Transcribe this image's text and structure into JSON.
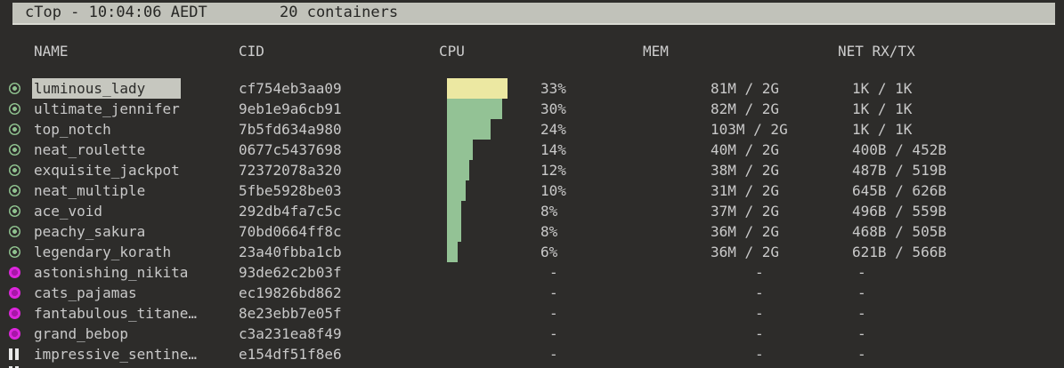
{
  "topbar": {
    "title": "cTop - 10:04:06 AEDT",
    "containers_count": "20 containers"
  },
  "columns": {
    "name": "NAME",
    "cid": "CID",
    "cpu": "CPU",
    "mem": "MEM",
    "net": "NET RX/TX"
  },
  "palette": {
    "bg": "#2d2c2a",
    "topbar_bg": "#c1c2ba",
    "topbar_text": "#262624",
    "text": "#c9c9c9",
    "selected_bg": "#c6c7bf",
    "selected_text": "#2b2b29",
    "running": "#8fc28f",
    "exited": "#dc26dc",
    "exited_center": "#a816a8",
    "paused": "#e8e8e8",
    "bar_warn": "#ece8a2",
    "bar_ok": "#93c295"
  },
  "chart_data": {
    "type": "bar",
    "title": "CPU usage per container",
    "categories": [
      "luminous_lady",
      "ultimate_jennifer",
      "top_notch",
      "neat_roulette",
      "exquisite_jackpot",
      "neat_multiple",
      "ace_void",
      "peachy_sakura",
      "legendary_korath"
    ],
    "values": [
      33,
      30,
      24,
      14,
      12,
      10,
      8,
      8,
      6
    ],
    "xlabel": "CPU %",
    "ylabel": "",
    "xlim": [
      0,
      100
    ],
    "orientation": "horizontal"
  },
  "rows": [
    {
      "status": "running",
      "selected": true,
      "name": "luminous_lady",
      "cid": "cf754eb3aa09",
      "cpu_pct": 33,
      "cpu": "33%",
      "mem": "81M / 2G",
      "net": "1K / 1K",
      "bar": "warn"
    },
    {
      "status": "running",
      "selected": false,
      "name": "ultimate_jennifer",
      "cid": "9eb1e9a6cb91",
      "cpu_pct": 30,
      "cpu": "30%",
      "mem": "82M / 2G",
      "net": "1K / 1K",
      "bar": "ok"
    },
    {
      "status": "running",
      "selected": false,
      "name": "top_notch",
      "cid": "7b5fd634a980",
      "cpu_pct": 24,
      "cpu": "24%",
      "mem": "103M / 2G",
      "net": "1K / 1K",
      "bar": "ok"
    },
    {
      "status": "running",
      "selected": false,
      "name": "neat_roulette",
      "cid": "0677c5437698",
      "cpu_pct": 14,
      "cpu": "14%",
      "mem": "40M / 2G",
      "net": "400B / 452B",
      "bar": "ok"
    },
    {
      "status": "running",
      "selected": false,
      "name": "exquisite_jackpot",
      "cid": "72372078a320",
      "cpu_pct": 12,
      "cpu": "12%",
      "mem": "38M / 2G",
      "net": "487B / 519B",
      "bar": "ok"
    },
    {
      "status": "running",
      "selected": false,
      "name": "neat_multiple",
      "cid": "5fbe5928be03",
      "cpu_pct": 10,
      "cpu": "10%",
      "mem": "31M / 2G",
      "net": "645B / 626B",
      "bar": "ok"
    },
    {
      "status": "running",
      "selected": false,
      "name": "ace_void",
      "cid": "292db4fa7c5c",
      "cpu_pct": 8,
      "cpu": "8%",
      "mem": "37M / 2G",
      "net": "496B / 559B",
      "bar": "ok"
    },
    {
      "status": "running",
      "selected": false,
      "name": "peachy_sakura",
      "cid": "70bd0664ff8c",
      "cpu_pct": 8,
      "cpu": "8%",
      "mem": "36M / 2G",
      "net": "468B / 505B",
      "bar": "ok"
    },
    {
      "status": "running",
      "selected": false,
      "name": "legendary_korath",
      "cid": "23a40fbba1cb",
      "cpu_pct": 6,
      "cpu": "6%",
      "mem": "36M / 2G",
      "net": "621B / 566B",
      "bar": "ok"
    },
    {
      "status": "exited",
      "selected": false,
      "name": "astonishing_nikita",
      "cid": "93de62c2b03f",
      "cpu_pct": 0,
      "cpu": "-",
      "mem": "-",
      "net": "-"
    },
    {
      "status": "exited",
      "selected": false,
      "name": "cats_pajamas",
      "cid": "ec19826bd862",
      "cpu_pct": 0,
      "cpu": "-",
      "mem": "-",
      "net": "-"
    },
    {
      "status": "exited",
      "selected": false,
      "name": "fantabulous_titane…",
      "cid": "8e23ebb7e05f",
      "cpu_pct": 0,
      "cpu": "-",
      "mem": "-",
      "net": "-"
    },
    {
      "status": "exited",
      "selected": false,
      "name": "grand_bebop",
      "cid": "c3a231ea8f49",
      "cpu_pct": 0,
      "cpu": "-",
      "mem": "-",
      "net": "-"
    },
    {
      "status": "paused",
      "selected": false,
      "name": "impressive_sentine…",
      "cid": "e154df51f8e6",
      "cpu_pct": 0,
      "cpu": "-",
      "mem": "-",
      "net": "-"
    },
    {
      "status": "paused",
      "selected": false,
      "partial": true,
      "name": "",
      "cid": "",
      "cpu_pct": 0,
      "cpu": "",
      "mem": "",
      "net": ""
    }
  ]
}
